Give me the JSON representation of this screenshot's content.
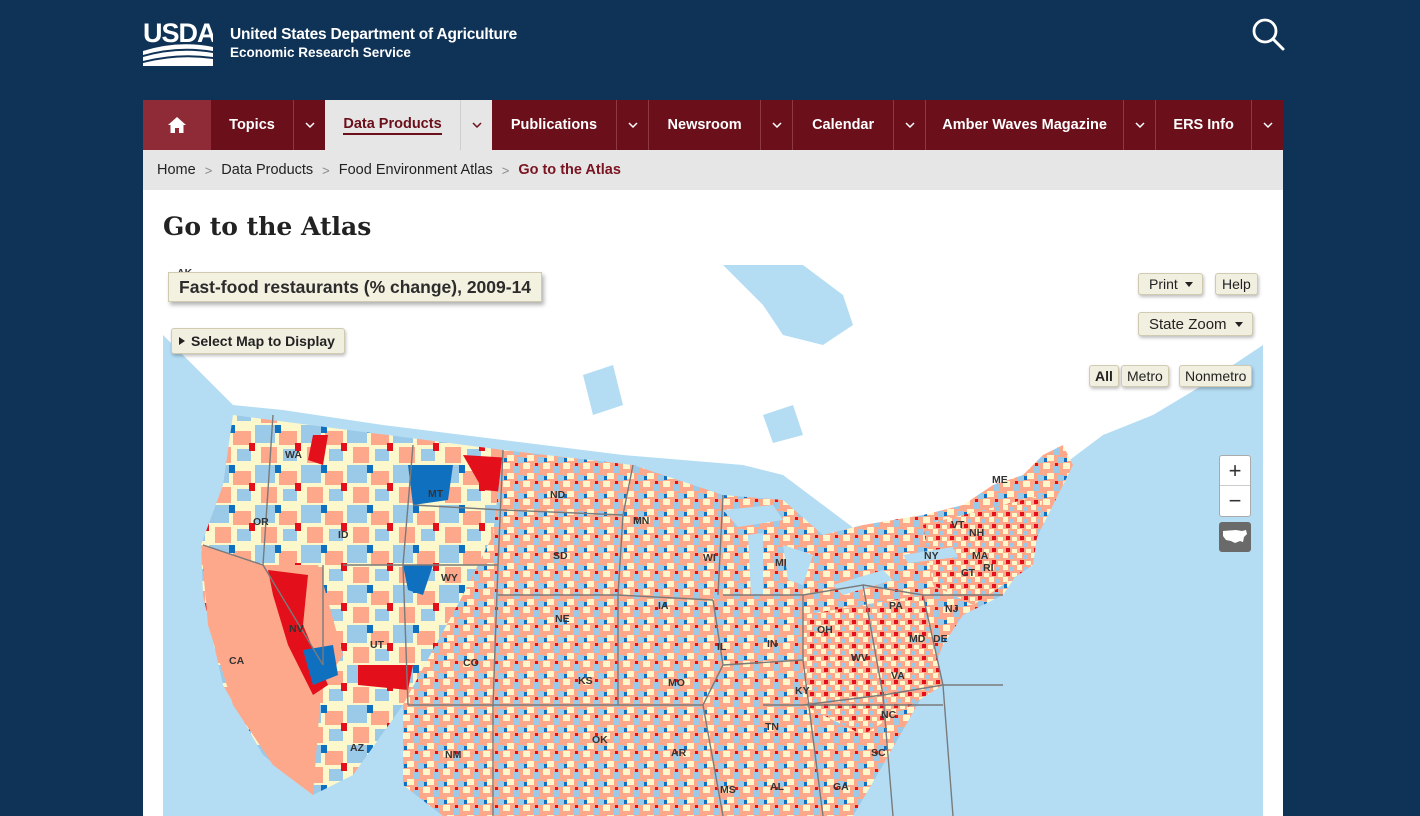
{
  "header": {
    "logo_text": "USDA",
    "agency_line1": "United States Department of Agriculture",
    "agency_line2": "Economic Research Service",
    "search_icon": "search-icon"
  },
  "nav": {
    "home_icon": "home-icon",
    "items": [
      {
        "label": "Topics",
        "active": false
      },
      {
        "label": "Data Products",
        "active": true
      },
      {
        "label": "Publications",
        "active": false
      },
      {
        "label": "Newsroom",
        "active": false
      },
      {
        "label": "Calendar",
        "active": false
      },
      {
        "label": "Amber Waves Magazine",
        "active": false
      },
      {
        "label": "ERS Info",
        "active": false
      }
    ]
  },
  "breadcrumb": {
    "items": [
      "Home",
      "Data Products",
      "Food Environment Atlas"
    ],
    "current": "Go to the Atlas",
    "separator": ">"
  },
  "page": {
    "title": "Go to the Atlas"
  },
  "map": {
    "title": "Fast-food restaurants (% change), 2009-14",
    "select_map": "Select Map to Display",
    "print": "Print",
    "help": "Help",
    "state_zoom": "State Zoom",
    "filters": [
      "All",
      "Metro",
      "Nonmetro"
    ],
    "selected_filter": "All",
    "zoom_in": "+",
    "zoom_out": "−",
    "state_labels": [
      "AK",
      "WA",
      "OR",
      "ID",
      "MT",
      "ND",
      "MN",
      "WY",
      "SD",
      "NV",
      "CA",
      "UT",
      "CO",
      "NE",
      "IA",
      "KS",
      "MO",
      "AZ",
      "NM",
      "OK",
      "AR",
      "MS",
      "AL",
      "GA",
      "TN",
      "KY",
      "IL",
      "IN",
      "OH",
      "WI",
      "MI",
      "PA",
      "NY",
      "VT",
      "NH",
      "ME",
      "MA",
      "RI",
      "CT",
      "NJ",
      "MD",
      "DE",
      "WV",
      "VA",
      "NC",
      "SC"
    ],
    "colors": {
      "water": "#b4ddf4",
      "land": "#ffffff",
      "large_increase": "#e3101b",
      "increase": "#fda88a",
      "no_change": "#fdf8cc",
      "decrease": "#9bc9e8",
      "large_decrease": "#1070c0"
    }
  }
}
